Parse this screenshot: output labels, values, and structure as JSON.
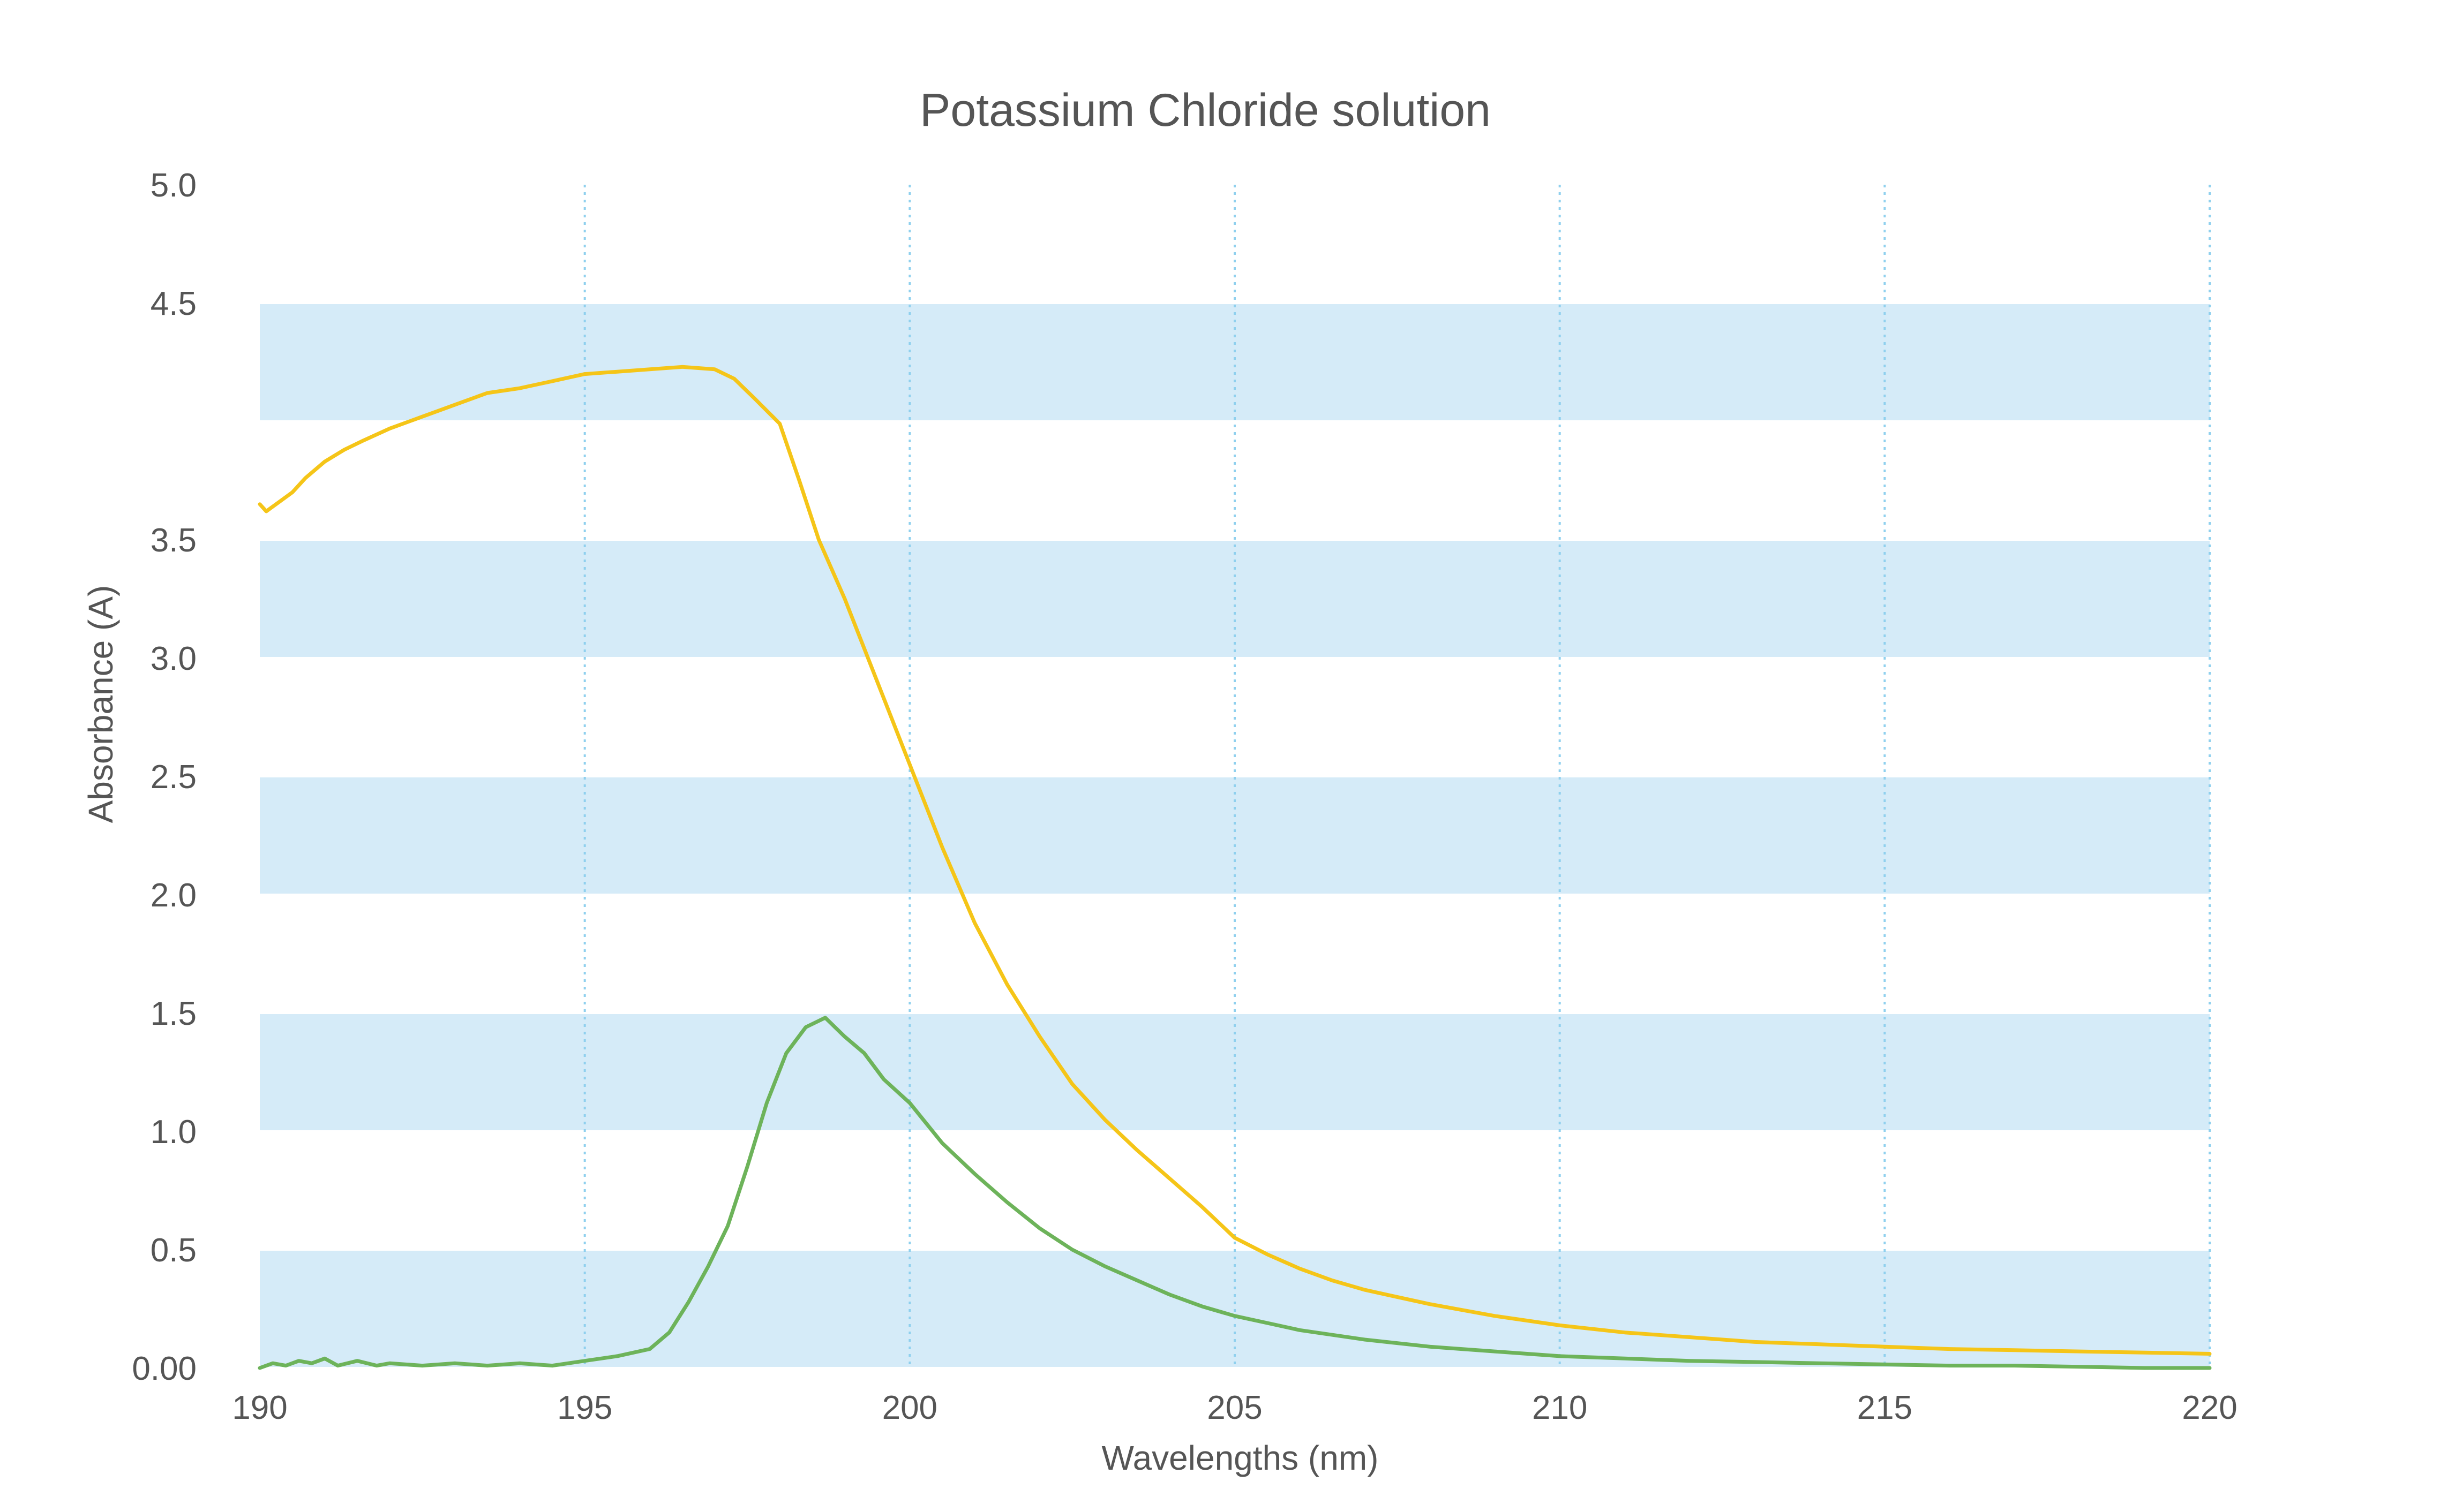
{
  "chart_data": {
    "type": "line",
    "title": "Potassium Chloride solution",
    "xlabel": "Wavelengths (nm)",
    "ylabel": "Absorbance (A)",
    "xlim": [
      190,
      220
    ],
    "ylim": [
      0,
      5.0
    ],
    "x_ticks": [
      "190",
      "195",
      "200",
      "205",
      "210",
      "215",
      "220"
    ],
    "y_ticks": [
      "0.00",
      "0.5",
      "1.0",
      "1.5",
      "2.0",
      "2.5",
      "3.0",
      "3.5",
      "4.5",
      "5.0"
    ],
    "y_tick_values": [
      0,
      0.5,
      1.0,
      1.5,
      2.0,
      2.5,
      3.0,
      3.5,
      4.5,
      5.0
    ],
    "grid": {
      "vertical_dotted": true,
      "horizontal_bands": true
    },
    "colors": {
      "band": "#d5ebf8",
      "grid": "#8fd0ee",
      "text": "#555555"
    },
    "series": [
      {
        "color": "#f5c518",
        "points": [
          [
            190.0,
            3.65
          ],
          [
            190.1,
            3.62
          ],
          [
            190.3,
            3.66
          ],
          [
            190.5,
            3.7
          ],
          [
            190.7,
            3.76
          ],
          [
            191.0,
            3.83
          ],
          [
            191.3,
            3.88
          ],
          [
            191.6,
            3.92
          ],
          [
            192.0,
            3.97
          ],
          [
            192.5,
            4.02
          ],
          [
            193.0,
            4.07
          ],
          [
            193.5,
            4.12
          ],
          [
            194.0,
            4.14
          ],
          [
            194.5,
            4.17
          ],
          [
            195.0,
            4.2
          ],
          [
            195.5,
            4.21
          ],
          [
            196.0,
            4.22
          ],
          [
            196.5,
            4.23
          ],
          [
            197.0,
            4.22
          ],
          [
            197.3,
            4.18
          ],
          [
            197.6,
            4.1
          ],
          [
            198.0,
            3.99
          ],
          [
            198.3,
            3.75
          ],
          [
            198.6,
            3.5
          ],
          [
            199.0,
            3.25
          ],
          [
            199.5,
            2.9
          ],
          [
            200.0,
            2.55
          ],
          [
            200.5,
            2.2
          ],
          [
            201.0,
            1.88
          ],
          [
            201.5,
            1.62
          ],
          [
            202.0,
            1.4
          ],
          [
            202.5,
            1.2
          ],
          [
            203.0,
            1.05
          ],
          [
            203.5,
            0.92
          ],
          [
            204.0,
            0.8
          ],
          [
            204.5,
            0.68
          ],
          [
            205.0,
            0.55
          ],
          [
            205.5,
            0.48
          ],
          [
            206.0,
            0.42
          ],
          [
            206.5,
            0.37
          ],
          [
            207.0,
            0.33
          ],
          [
            207.5,
            0.3
          ],
          [
            208.0,
            0.27
          ],
          [
            209.0,
            0.22
          ],
          [
            210.0,
            0.18
          ],
          [
            211.0,
            0.15
          ],
          [
            212.0,
            0.13
          ],
          [
            213.0,
            0.11
          ],
          [
            214.0,
            0.1
          ],
          [
            215.0,
            0.09
          ],
          [
            216.0,
            0.08
          ],
          [
            217.0,
            0.075
          ],
          [
            218.0,
            0.07
          ],
          [
            219.0,
            0.065
          ],
          [
            220.0,
            0.06
          ]
        ]
      },
      {
        "color": "#6db35a",
        "points": [
          [
            190.0,
            0.0
          ],
          [
            190.2,
            0.02
          ],
          [
            190.4,
            0.01
          ],
          [
            190.6,
            0.03
          ],
          [
            190.8,
            0.02
          ],
          [
            191.0,
            0.04
          ],
          [
            191.2,
            0.01
          ],
          [
            191.5,
            0.03
          ],
          [
            191.8,
            0.01
          ],
          [
            192.0,
            0.02
          ],
          [
            192.5,
            0.01
          ],
          [
            193.0,
            0.02
          ],
          [
            193.5,
            0.01
          ],
          [
            194.0,
            0.02
          ],
          [
            194.5,
            0.01
          ],
          [
            195.0,
            0.03
          ],
          [
            195.5,
            0.05
          ],
          [
            196.0,
            0.08
          ],
          [
            196.3,
            0.15
          ],
          [
            196.6,
            0.28
          ],
          [
            196.9,
            0.43
          ],
          [
            197.2,
            0.6
          ],
          [
            197.5,
            0.85
          ],
          [
            197.8,
            1.12
          ],
          [
            198.1,
            1.33
          ],
          [
            198.4,
            1.44
          ],
          [
            198.7,
            1.48
          ],
          [
            199.0,
            1.4
          ],
          [
            199.3,
            1.33
          ],
          [
            199.6,
            1.22
          ],
          [
            200.0,
            1.12
          ],
          [
            200.5,
            0.95
          ],
          [
            201.0,
            0.82
          ],
          [
            201.5,
            0.7
          ],
          [
            202.0,
            0.59
          ],
          [
            202.5,
            0.5
          ],
          [
            203.0,
            0.43
          ],
          [
            203.5,
            0.37
          ],
          [
            204.0,
            0.31
          ],
          [
            204.5,
            0.26
          ],
          [
            205.0,
            0.22
          ],
          [
            205.5,
            0.19
          ],
          [
            206.0,
            0.16
          ],
          [
            207.0,
            0.12
          ],
          [
            208.0,
            0.09
          ],
          [
            209.0,
            0.07
          ],
          [
            210.0,
            0.05
          ],
          [
            211.0,
            0.04
          ],
          [
            212.0,
            0.03
          ],
          [
            213.0,
            0.025
          ],
          [
            214.0,
            0.02
          ],
          [
            215.0,
            0.015
          ],
          [
            216.0,
            0.01
          ],
          [
            217.0,
            0.01
          ],
          [
            218.0,
            0.005
          ],
          [
            219.0,
            0.0
          ],
          [
            220.0,
            0.0
          ]
        ]
      }
    ]
  }
}
